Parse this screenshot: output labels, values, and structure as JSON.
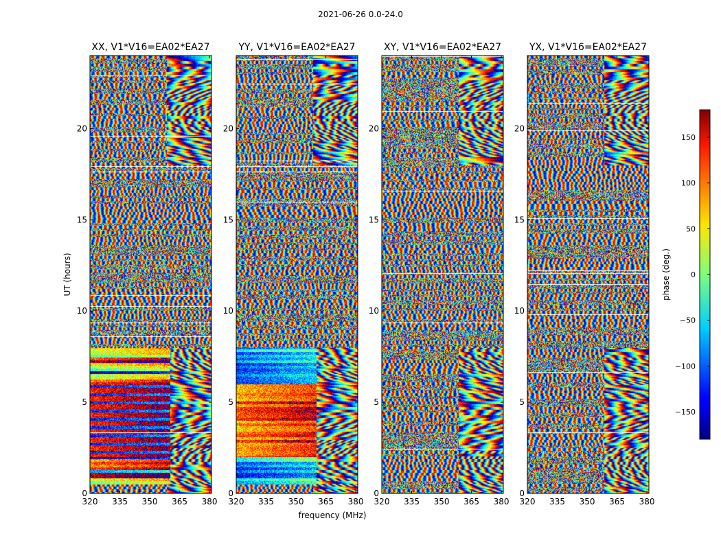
{
  "figure": {
    "suptitle": "2021-06-26 0.0-24.0",
    "xlabel": "frequency (MHz)",
    "ylabel": "UT (hours)",
    "colorbar_label": "phase (deg.)",
    "colormap": "jet"
  },
  "chart_data": {
    "type": "heatmap",
    "title": "2021-06-26 0.0-24.0",
    "xlabel": "frequency (MHz)",
    "ylabel": "UT (hours)",
    "xlim": [
      320,
      381
    ],
    "ylim": [
      0,
      24
    ],
    "x_ticks": [
      320,
      335,
      350,
      365,
      380
    ],
    "y_ticks": [
      0,
      5,
      10,
      15,
      20
    ],
    "color_scale": {
      "label": "phase (deg.)",
      "range": [
        -180,
        180
      ],
      "ticks": [
        -150,
        -100,
        -50,
        0,
        50,
        100,
        150
      ]
    },
    "panels": [
      {
        "title": "XX, V1*V16=EA02*EA27"
      },
      {
        "title": "YY, V1*V16=EA02*EA27"
      },
      {
        "title": "XY, V1*V16=EA02*EA27"
      },
      {
        "title": "YX, V1*V16=EA02*EA27"
      }
    ]
  }
}
